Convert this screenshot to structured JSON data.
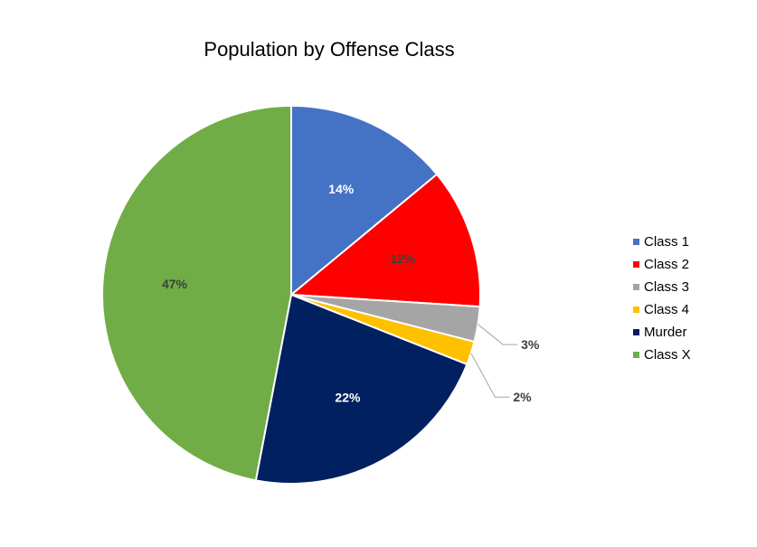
{
  "chart_data": {
    "type": "pie",
    "title": "Population by Offense Class",
    "categories": [
      "Class 1",
      "Class 2",
      "Class 3",
      "Class 4",
      "Murder",
      "Class X"
    ],
    "values": [
      14,
      12,
      3,
      2,
      22,
      47
    ],
    "labels": [
      "14%",
      "12%",
      "3%",
      "2%",
      "22%",
      "47%"
    ],
    "colors": [
      "#4472C4",
      "#FF0000",
      "#A5A5A5",
      "#FFC000",
      "#002060",
      "#70AD47"
    ],
    "legend_position": "right"
  }
}
